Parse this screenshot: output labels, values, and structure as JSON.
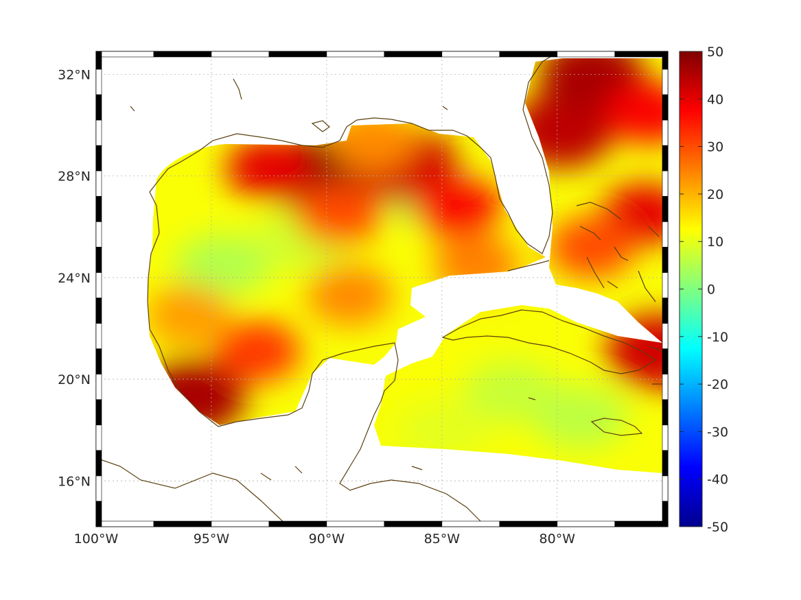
{
  "map": {
    "lon_range": [
      -100,
      -75.2
    ],
    "lat_range": [
      14.2,
      32.9
    ],
    "x_ticks": [
      "100°W",
      "95°W",
      "90°W",
      "85°W",
      "80°W"
    ],
    "x_tick_values": [
      -100,
      -95,
      -90,
      -85,
      -80
    ],
    "y_ticks": [
      "32°N",
      "28°N",
      "24°N",
      "20°N",
      "16°N"
    ],
    "y_tick_values": [
      32,
      28,
      24,
      20,
      16
    ],
    "grid": true,
    "coastline_color": "#5a3e0f"
  },
  "colorbar": {
    "min": -50,
    "max": 50,
    "colormap": "jet",
    "ticks": [
      "50",
      "40",
      "30",
      "20",
      "10",
      "0",
      "-10",
      "-20",
      "-30",
      "-40",
      "-50"
    ],
    "tick_values": [
      50,
      40,
      30,
      20,
      10,
      0,
      -10,
      -20,
      -30,
      -40,
      -50
    ]
  },
  "field": {
    "hotspots": [
      {
        "lon": -90.5,
        "lat": 28.1,
        "value": 50
      },
      {
        "lon": -86.5,
        "lat": 28.4,
        "value": 42
      },
      {
        "lon": -84.3,
        "lat": 26.8,
        "value": 38
      },
      {
        "lon": -92.5,
        "lat": 28.3,
        "value": 40
      },
      {
        "lon": -88.0,
        "lat": 29.4,
        "value": 24
      },
      {
        "lon": -79.8,
        "lat": 29.8,
        "value": 44
      },
      {
        "lon": -78.5,
        "lat": 32.0,
        "value": 46
      },
      {
        "lon": -76.0,
        "lat": 30.5,
        "value": 38
      },
      {
        "lon": -76.2,
        "lat": 26.5,
        "value": 40
      },
      {
        "lon": -78.5,
        "lat": 25.2,
        "value": 30
      },
      {
        "lon": -95.8,
        "lat": 19.3,
        "value": 46
      },
      {
        "lon": -93.0,
        "lat": 21.1,
        "value": 32
      },
      {
        "lon": -89.0,
        "lat": 23.3,
        "value": 24
      },
      {
        "lon": -96.0,
        "lat": 22.5,
        "value": 22
      },
      {
        "lon": -75.6,
        "lat": 21.1,
        "value": 42
      },
      {
        "lon": -83.5,
        "lat": 24.5,
        "value": 25
      },
      {
        "lon": -89.5,
        "lat": 26.5,
        "value": 30
      }
    ],
    "coolspots": [
      {
        "lon": -94.5,
        "lat": 24.5,
        "value": 5
      },
      {
        "lon": -85.5,
        "lat": 27.3,
        "value": 4
      },
      {
        "lon": -82.0,
        "lat": 19.5,
        "value": 7
      },
      {
        "lon": -79.0,
        "lat": 18.5,
        "value": 6
      },
      {
        "lon": -85.0,
        "lat": 18.0,
        "value": 10
      },
      {
        "lon": -91.0,
        "lat": 25.5,
        "value": 8
      }
    ],
    "background_value": 12
  }
}
